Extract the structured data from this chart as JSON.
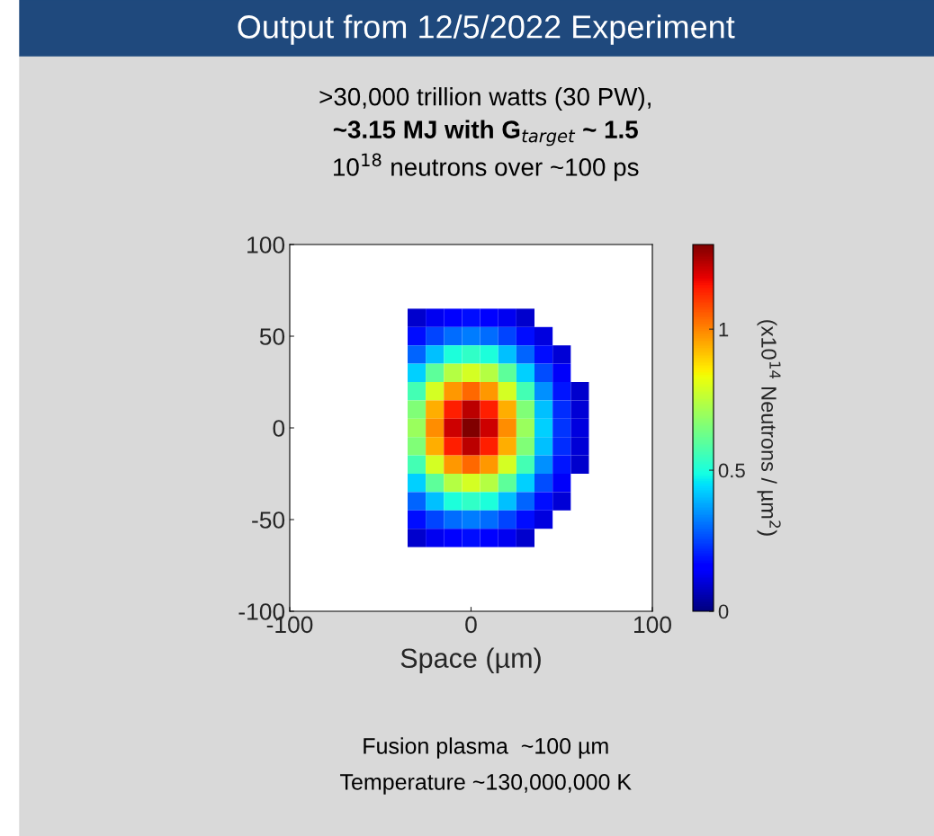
{
  "chart_data": {
    "type": "heatmap",
    "title": "Output from 12/5/2022 Experiment",
    "subtitle": [
      ">30,000 trillion watts (30 PW),",
      "~3.15 MJ with G$_{target}$ ~ 1.5",
      "10$^{18}$ neutrons over ~100 ps"
    ],
    "xlabel": "Space (µm)",
    "clabel": "(x10$^{14}$ Neutrons / µm$^{2}$)",
    "annotations": [
      "Fusion plasma  ~100 µm",
      "Temperature ~130,000,000 K"
    ],
    "x": [
      -30,
      -20,
      -10,
      0,
      10,
      20,
      30,
      40,
      50,
      60
    ],
    "y": [
      60,
      50,
      40,
      30,
      20,
      10,
      0,
      -10,
      -20,
      -30,
      -40,
      -50,
      -60
    ],
    "cells": [
      [
        0.09,
        0.13,
        0.16,
        0.18,
        0.16,
        0.13,
        0.09,
        null,
        null,
        null
      ],
      [
        0.18,
        0.25,
        0.3,
        0.32,
        0.3,
        0.25,
        0.18,
        0.11,
        null,
        null
      ],
      [
        0.29,
        0.41,
        0.5,
        0.53,
        0.5,
        0.41,
        0.29,
        0.18,
        0.1,
        null
      ],
      [
        0.43,
        0.6,
        0.74,
        0.79,
        0.74,
        0.6,
        0.43,
        0.26,
        0.14,
        null
      ],
      [
        0.56,
        0.79,
        0.97,
        1.04,
        0.97,
        0.79,
        0.56,
        0.35,
        0.19,
        0.09
      ],
      [
        0.66,
        0.94,
        1.14,
        1.23,
        1.14,
        0.94,
        0.66,
        0.41,
        0.22,
        0.1
      ],
      [
        0.7,
        0.99,
        1.21,
        1.3,
        1.21,
        0.99,
        0.7,
        0.43,
        0.23,
        0.11
      ],
      [
        0.66,
        0.94,
        1.14,
        1.23,
        1.14,
        0.94,
        0.66,
        0.41,
        0.22,
        0.1
      ],
      [
        0.56,
        0.79,
        0.97,
        1.04,
        0.97,
        0.79,
        0.56,
        0.35,
        0.19,
        0.09
      ],
      [
        0.43,
        0.6,
        0.74,
        0.79,
        0.74,
        0.6,
        0.43,
        0.26,
        0.14,
        null
      ],
      [
        0.29,
        0.41,
        0.5,
        0.53,
        0.5,
        0.41,
        0.29,
        0.18,
        0.1,
        null
      ],
      [
        0.18,
        0.25,
        0.3,
        0.32,
        0.3,
        0.25,
        0.18,
        0.11,
        null,
        null
      ],
      [
        0.09,
        0.13,
        0.16,
        0.18,
        0.16,
        0.13,
        0.09,
        null,
        null,
        null
      ]
    ],
    "xlim": [
      -100,
      100
    ],
    "ylim": [
      -100,
      100
    ],
    "xticks": [
      -100,
      0,
      100
    ],
    "yticks": [
      -100,
      -50,
      0,
      50,
      100
    ],
    "clim": [
      0,
      1.3
    ],
    "cticks": [
      0,
      0.5,
      1
    ],
    "grid": false
  }
}
